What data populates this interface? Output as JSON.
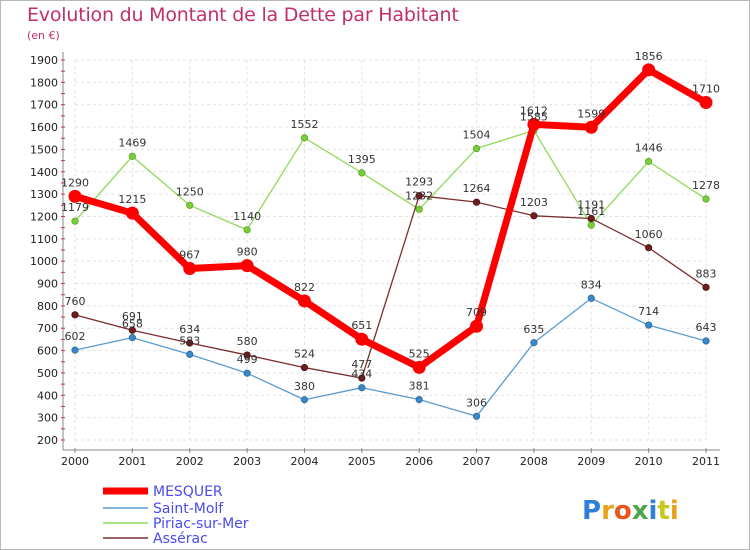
{
  "chart_data": {
    "type": "line",
    "title": "Evolution du Montant de la Dette par Habitant",
    "subtitle": "(en €)",
    "x": [
      "2000",
      "2001",
      "2002",
      "2003",
      "2004",
      "2005",
      "2006",
      "2007",
      "2008",
      "2009",
      "2010",
      "2011"
    ],
    "ylim": [
      200,
      1900
    ],
    "yticks": [
      200,
      300,
      400,
      500,
      600,
      700,
      800,
      900,
      1000,
      1100,
      1200,
      1300,
      1400,
      1500,
      1600,
      1700,
      1800,
      1900
    ],
    "grid": true,
    "legend_position": "bottom-left",
    "series": [
      {
        "name": "MESQUER",
        "color": "#ff0000",
        "values": [
          1290,
          1215,
          967,
          980,
          822,
          651,
          525,
          709,
          1612,
          1599,
          1856,
          1710
        ]
      },
      {
        "name": "Saint-Molf",
        "color": "#5a9bd0",
        "values": [
          602,
          658,
          583,
          499,
          380,
          434,
          381,
          306,
          635,
          834,
          714,
          643
        ]
      },
      {
        "name": "Piriac-sur-Mer",
        "color": "#8fd95a",
        "values": [
          1179,
          1469,
          1250,
          1140,
          1552,
          1395,
          1232,
          1504,
          1585,
          1161,
          1446,
          1278
        ]
      },
      {
        "name": "Assérac",
        "color": "#7a2f2f",
        "values": [
          760,
          691,
          634,
          580,
          524,
          477,
          1293,
          1264,
          1203,
          1191,
          1060,
          883
        ]
      }
    ]
  },
  "logo": {
    "text": "Proxiti"
  }
}
